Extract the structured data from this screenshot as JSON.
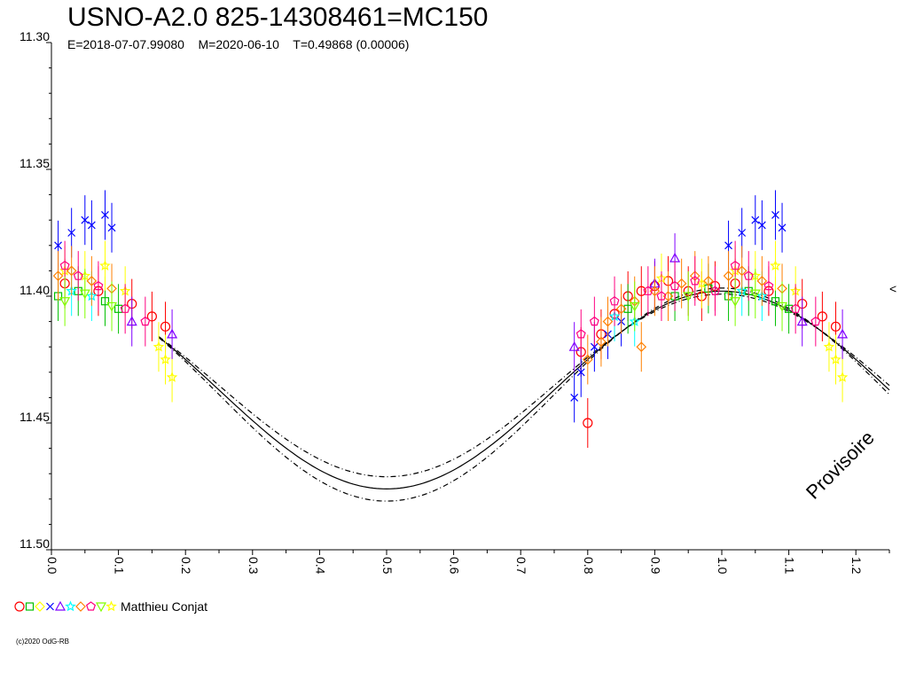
{
  "header": {
    "title": "USNO-A2.0 825-14308461=MC150",
    "subtitle": "E=2018-07-07.99080    M=2020-06-10    T=0.49868 (0.00006)"
  },
  "legend": {
    "label": "Matthieu Conjat",
    "marker_colors": [
      "#ff0000",
      "#00c000",
      "#ffff00",
      "#0000ff",
      "#8000ff",
      "#00ffff",
      "#ff8000",
      "#ff0080",
      "#80ff00",
      "#ffff00"
    ]
  },
  "footer": {
    "copyright": "(c)2020 OdG-RB",
    "watermark": "Provisoire"
  },
  "chart_data": {
    "type": "scatter",
    "title": "USNO-A2.0 825-14308461=MC150",
    "xlabel": "",
    "ylabel": "",
    "xlim": [
      0.0,
      1.25
    ],
    "ylim": [
      11.3,
      11.5
    ],
    "y_inverted": true,
    "x_ticks": [
      "0.0",
      "0.1",
      "0.2",
      "0.3",
      "0.4",
      "0.5",
      "0.6",
      "0.7",
      "0.8",
      "0.9",
      "1.0",
      "1.1",
      "1.2"
    ],
    "y_ticks": [
      "11.30",
      "11.35",
      "11.40",
      "11.45",
      "11.50"
    ],
    "grid": false,
    "model": {
      "min_mag": 11.398,
      "max_mag": 11.476,
      "min_phase": 0.0,
      "envelope": 0.003
    },
    "right_marker": "<",
    "series": [
      {
        "color": "#ff0000",
        "marker": "circle",
        "points": [
          [
            0.02,
            11.395
          ],
          [
            0.07,
            11.398
          ],
          [
            0.12,
            11.403
          ],
          [
            0.15,
            11.408
          ],
          [
            0.17,
            11.412
          ],
          [
            0.79,
            11.422
          ],
          [
            0.8,
            11.45
          ],
          [
            0.82,
            11.415
          ],
          [
            0.84,
            11.407
          ],
          [
            0.86,
            11.4
          ],
          [
            0.88,
            11.398
          ],
          [
            0.9,
            11.396
          ],
          [
            0.92,
            11.394
          ],
          [
            0.95,
            11.398
          ],
          [
            0.97,
            11.4
          ],
          [
            0.99,
            11.396
          ],
          [
            1.02,
            11.395
          ],
          [
            1.07,
            11.398
          ],
          [
            1.12,
            11.403
          ],
          [
            1.15,
            11.408
          ],
          [
            1.17,
            11.412
          ]
        ]
      },
      {
        "color": "#00c000",
        "marker": "square",
        "points": [
          [
            0.01,
            11.4
          ],
          [
            0.04,
            11.398
          ],
          [
            0.08,
            11.402
          ],
          [
            0.1,
            11.405
          ],
          [
            0.86,
            11.405
          ],
          [
            0.93,
            11.4
          ],
          [
            0.98,
            11.397
          ],
          [
            1.01,
            11.4
          ],
          [
            1.04,
            11.398
          ],
          [
            1.08,
            11.402
          ],
          [
            1.1,
            11.405
          ]
        ]
      },
      {
        "color": "#ffff00",
        "marker": "star",
        "points": [
          [
            0.02,
            11.39
          ],
          [
            0.05,
            11.392
          ],
          [
            0.08,
            11.388
          ],
          [
            0.11,
            11.398
          ],
          [
            0.16,
            11.42
          ],
          [
            0.17,
            11.425
          ],
          [
            0.18,
            11.432
          ],
          [
            0.91,
            11.393
          ],
          [
            0.97,
            11.395
          ],
          [
            1.02,
            11.39
          ],
          [
            1.05,
            11.392
          ],
          [
            1.08,
            11.388
          ],
          [
            1.11,
            11.398
          ],
          [
            1.16,
            11.42
          ],
          [
            1.17,
            11.425
          ],
          [
            1.18,
            11.432
          ]
        ]
      },
      {
        "color": "#0000ff",
        "marker": "cross",
        "points": [
          [
            0.01,
            11.38
          ],
          [
            0.03,
            11.375
          ],
          [
            0.05,
            11.37
          ],
          [
            0.06,
            11.372
          ],
          [
            0.08,
            11.368
          ],
          [
            0.09,
            11.373
          ],
          [
            0.78,
            11.44
          ],
          [
            0.79,
            11.43
          ],
          [
            0.81,
            11.42
          ],
          [
            0.83,
            11.415
          ],
          [
            0.85,
            11.41
          ],
          [
            1.01,
            11.38
          ],
          [
            1.03,
            11.375
          ],
          [
            1.05,
            11.37
          ],
          [
            1.06,
            11.372
          ],
          [
            1.08,
            11.368
          ],
          [
            1.09,
            11.373
          ]
        ]
      },
      {
        "color": "#8000ff",
        "marker": "triangle",
        "points": [
          [
            0.12,
            11.41
          ],
          [
            0.18,
            11.415
          ],
          [
            0.78,
            11.42
          ],
          [
            0.9,
            11.395
          ],
          [
            0.93,
            11.385
          ],
          [
            1.12,
            11.41
          ],
          [
            1.18,
            11.415
          ]
        ]
      },
      {
        "color": "#00ffff",
        "marker": "star",
        "points": [
          [
            0.03,
            11.398
          ],
          [
            0.06,
            11.4
          ],
          [
            0.84,
            11.408
          ],
          [
            0.87,
            11.41
          ],
          [
            1.03,
            11.398
          ],
          [
            1.06,
            11.4
          ]
        ]
      },
      {
        "color": "#ff8000",
        "marker": "diamond",
        "points": [
          [
            0.01,
            11.392
          ],
          [
            0.03,
            11.39
          ],
          [
            0.06,
            11.394
          ],
          [
            0.09,
            11.397
          ],
          [
            0.8,
            11.425
          ],
          [
            0.82,
            11.418
          ],
          [
            0.83,
            11.41
          ],
          [
            0.85,
            11.405
          ],
          [
            0.87,
            11.402
          ],
          [
            0.88,
            11.42
          ],
          [
            0.9,
            11.398
          ],
          [
            0.92,
            11.4
          ],
          [
            0.94,
            11.395
          ],
          [
            0.96,
            11.392
          ],
          [
            0.98,
            11.394
          ],
          [
            1.01,
            11.392
          ],
          [
            1.03,
            11.39
          ],
          [
            1.06,
            11.394
          ],
          [
            1.09,
            11.397
          ]
        ]
      },
      {
        "color": "#ff0080",
        "marker": "pentagon",
        "points": [
          [
            0.02,
            11.388
          ],
          [
            0.04,
            11.392
          ],
          [
            0.07,
            11.396
          ],
          [
            0.11,
            11.405
          ],
          [
            0.14,
            11.41
          ],
          [
            0.79,
            11.415
          ],
          [
            0.81,
            11.41
          ],
          [
            0.84,
            11.402
          ],
          [
            0.89,
            11.398
          ],
          [
            0.91,
            11.4
          ],
          [
            0.93,
            11.396
          ],
          [
            0.96,
            11.394
          ],
          [
            0.99,
            11.398
          ],
          [
            1.02,
            11.388
          ],
          [
            1.04,
            11.392
          ],
          [
            1.07,
            11.396
          ],
          [
            1.11,
            11.405
          ],
          [
            1.14,
            11.41
          ]
        ]
      },
      {
        "color": "#80ff00",
        "marker": "triangle-down",
        "points": [
          [
            0.02,
            11.402
          ],
          [
            0.05,
            11.399
          ],
          [
            0.09,
            11.404
          ],
          [
            0.87,
            11.404
          ],
          [
            0.95,
            11.4
          ],
          [
            1.02,
            11.402
          ],
          [
            1.05,
            11.399
          ],
          [
            1.09,
            11.404
          ]
        ]
      }
    ]
  }
}
